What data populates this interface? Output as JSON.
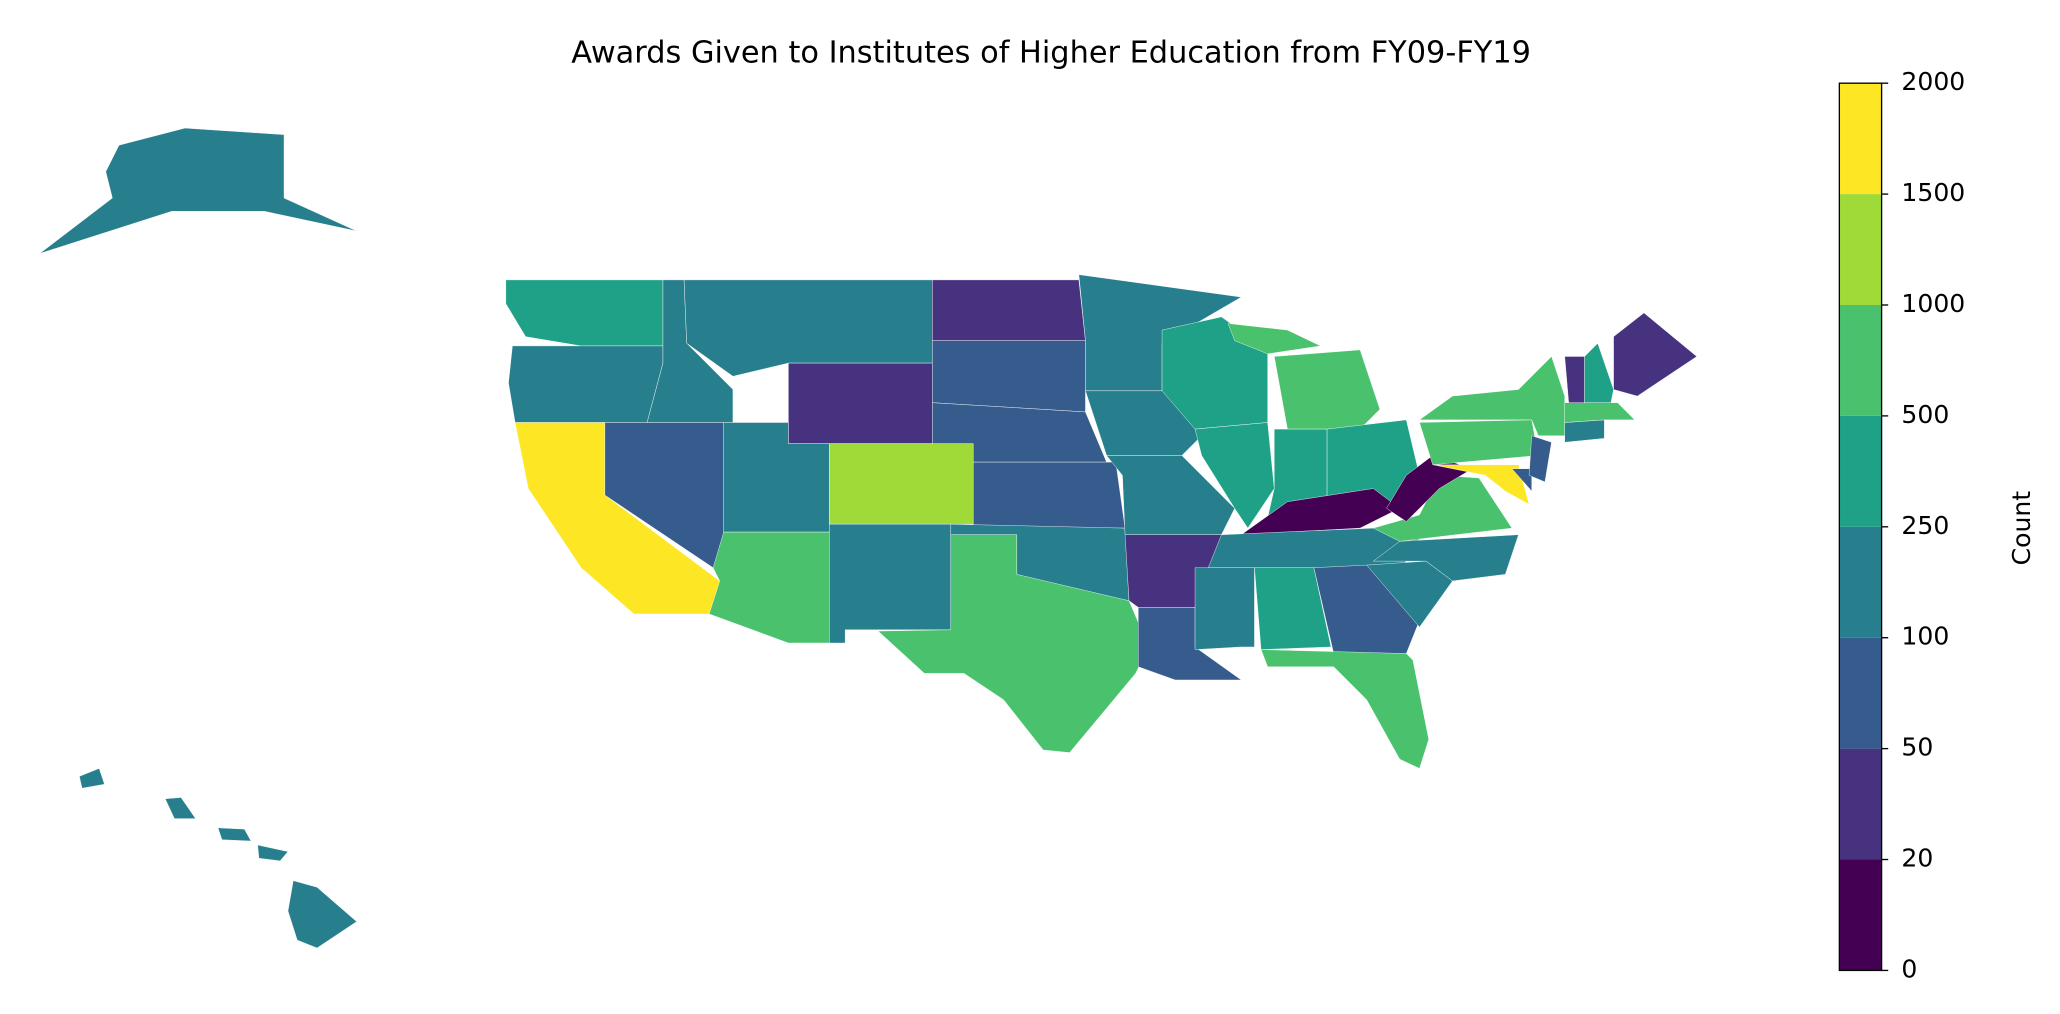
{
  "chart_data": {
    "type": "choropleth",
    "title": "Awards Given to Institutes of Higher Education from FY09-FY19",
    "colorbar_label": "Count",
    "cticks": [
      0,
      20,
      50,
      100,
      250,
      500,
      1000,
      1500,
      2000
    ],
    "colors": [
      "#440154",
      "#46327e",
      "#365c8d",
      "#277f8e",
      "#1fa187",
      "#4ac16d",
      "#a0da39",
      "#fde725"
    ],
    "values": [
      300,
      150,
      1800,
      70,
      150,
      150,
      30,
      150,
      1200,
      700,
      150,
      30,
      70,
      70,
      70,
      150,
      700,
      150,
      150,
      150,
      30,
      70,
      400,
      400,
      700,
      400,
      400,
      10,
      150,
      150,
      400,
      70,
      700,
      150,
      150,
      700,
      10,
      700,
      700,
      1800,
      70,
      70,
      150,
      700,
      30,
      400,
      30,
      150,
      150
    ]
  }
}
